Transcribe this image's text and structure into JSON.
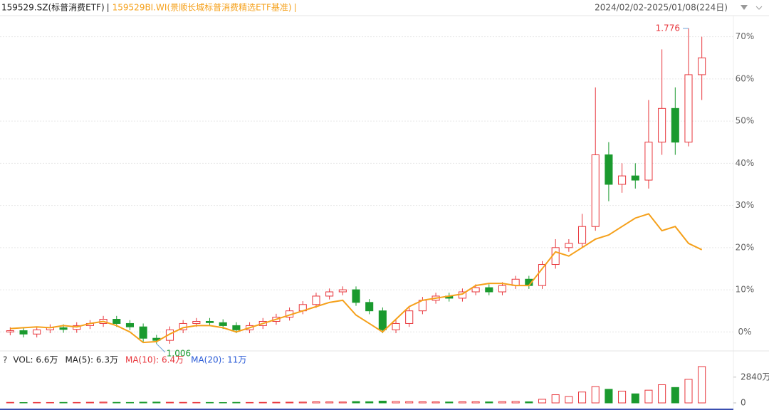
{
  "chart_data": [
    {
      "type": "candlestick",
      "subtitle": "2024/02/02-2025/01/08(224日)",
      "series": [
        {
          "name": "159529.SZ(标普消费ETF)",
          "up_color": "#e8363c",
          "down_color": "#1a9a2e",
          "open": [
            0,
            0.3,
            -0.5,
            0.5,
            1.0,
            0.6,
            1.5,
            2.0,
            3.0,
            2.0,
            1.2,
            -1.5,
            -2.0,
            0.5,
            2.0,
            2.5,
            2.2,
            1.5,
            0.5,
            1.5,
            2.5,
            3.5,
            5.0,
            6.5,
            8.5,
            9.5,
            10.0,
            7.0,
            5.0,
            0.5,
            2.0,
            5.0,
            7.5,
            8.5,
            8.0,
            9.5,
            10.5,
            9.5,
            11.0,
            12.5,
            11.0,
            16.0,
            20.0,
            21.0,
            25.0,
            42.0,
            35.0,
            37.0,
            36.0,
            45.0,
            53.0,
            45.0,
            61.0
          ],
          "close": [
            0.3,
            -0.5,
            0.5,
            1.0,
            0.6,
            1.5,
            2.0,
            3.0,
            2.0,
            1.2,
            -1.5,
            -2.0,
            0.5,
            2.0,
            2.5,
            2.2,
            1.5,
            0.5,
            1.5,
            2.5,
            3.5,
            5.0,
            6.5,
            8.5,
            9.5,
            10.0,
            7.0,
            5.0,
            0.5,
            2.0,
            5.0,
            7.5,
            8.5,
            8.0,
            9.5,
            10.5,
            9.5,
            11.0,
            12.5,
            11.0,
            16.0,
            20.0,
            21.0,
            25.0,
            42.0,
            35.0,
            37.0,
            36.0,
            45.0,
            53.0,
            45.0,
            61.0,
            65.0
          ],
          "high": [
            1.1,
            1.1,
            1.3,
            1.8,
            1.8,
            2.3,
            2.8,
            3.8,
            3.8,
            2.8,
            2.0,
            -0.7,
            1.3,
            2.8,
            3.3,
            3.3,
            3.0,
            2.3,
            2.3,
            3.3,
            4.3,
            5.8,
            7.3,
            9.3,
            10.3,
            10.8,
            10.8,
            7.8,
            5.8,
            2.8,
            5.8,
            8.3,
            9.3,
            9.3,
            10.3,
            11.3,
            11.3,
            11.8,
            13.3,
            13.3,
            16.8,
            22.0,
            22.0,
            28.0,
            58.0,
            45.0,
            40.0,
            40.0,
            55.0,
            67.0,
            58.0,
            72.0,
            70.0
          ],
          "low": [
            -0.8,
            -1.3,
            -1.3,
            -0.3,
            -0.2,
            -0.2,
            0.7,
            1.2,
            1.2,
            0.4,
            -2.3,
            -2.8,
            -2.8,
            -0.3,
            1.2,
            1.4,
            0.7,
            -0.3,
            -0.3,
            0.7,
            1.7,
            2.7,
            4.2,
            5.7,
            7.7,
            8.7,
            6.2,
            4.2,
            -0.3,
            -0.3,
            1.2,
            4.2,
            6.7,
            7.2,
            7.2,
            8.7,
            8.7,
            8.7,
            10.2,
            10.2,
            10.2,
            15.0,
            19.0,
            20.0,
            24.0,
            31.0,
            33.0,
            34.0,
            34.0,
            42.0,
            42.0,
            44.0,
            55.0
          ]
        },
        {
          "name": "159529BI.WI(景顺长城标普消费精选ETF基准)",
          "color": "#f5a01a",
          "values": [
            0.8,
            1.0,
            1.2,
            1.0,
            1.5,
            1.2,
            2.0,
            2.5,
            1.5,
            0,
            -2.5,
            -2.3,
            -0.5,
            1.0,
            1.5,
            1.5,
            1.0,
            0,
            1.0,
            2.0,
            3.0,
            4.0,
            5.0,
            6.0,
            7.0,
            7.5,
            4.0,
            2.0,
            0,
            3.0,
            6.0,
            7.5,
            8.0,
            8.5,
            9.0,
            11.0,
            11.5,
            11.5,
            11.0,
            11.0,
            15.0,
            19.0,
            18.0,
            20.0,
            22.0,
            23.0,
            25.0,
            27.0,
            28.0,
            24.0,
            25.0,
            21.0,
            19.5
          ]
        }
      ],
      "annotations": [
        {
          "text": "1.776"
        },
        {
          "text": "1.006"
        }
      ],
      "ylim": [
        -4,
        75
      ],
      "yticks": [
        {
          "value": 0,
          "label": "0%"
        },
        {
          "value": 10,
          "label": "10%"
        },
        {
          "value": 20,
          "label": "20%"
        },
        {
          "value": 30,
          "label": "30%"
        },
        {
          "value": 40,
          "label": "40%"
        },
        {
          "value": 50,
          "label": "50%"
        },
        {
          "value": 60,
          "label": "60%"
        },
        {
          "value": 70,
          "label": "70%"
        }
      ],
      "grid": true
    },
    {
      "type": "bar",
      "legend": [
        {
          "text": "?",
          "color": "#333333"
        },
        {
          "text": "VOL: 6.6万",
          "color": "#222222"
        },
        {
          "text": "MA(5): 6.3万",
          "color": "#222222"
        },
        {
          "text": "MA(10): 6.4万",
          "color": "#e8363c"
        },
        {
          "text": "MA(20): 11万",
          "color": "#2a5bd7"
        }
      ],
      "values": [
        60,
        40,
        50,
        45,
        55,
        50,
        70,
        90,
        60,
        50,
        80,
        90,
        70,
        60,
        50,
        50,
        40,
        60,
        50,
        60,
        70,
        80,
        90,
        120,
        110,
        100,
        150,
        130,
        200,
        160,
        140,
        120,
        110,
        100,
        120,
        130,
        110,
        140,
        160,
        120,
        400,
        900,
        700,
        1200,
        1800,
        1500,
        1300,
        1000,
        1400,
        2000,
        1700,
        2600,
        4000
      ],
      "ylim": [
        0,
        4000
      ],
      "yticks": [
        0,
        {
          "value": 2840,
          "label": "2840万"
        }
      ]
    }
  ]
}
